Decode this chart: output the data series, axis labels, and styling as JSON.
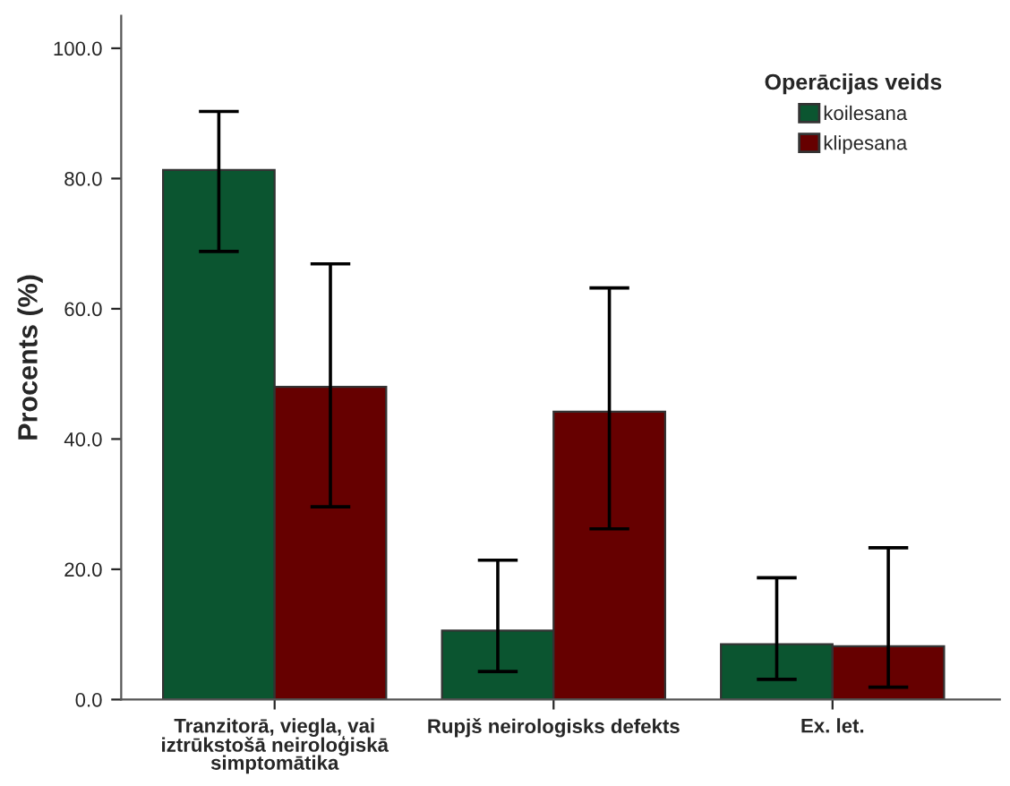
{
  "chart_data": {
    "type": "bar",
    "ylabel": "Procents (%)",
    "legend_title": "Operācijas veids",
    "legend": "top right",
    "grid": false,
    "categories": [
      "Tranzitorā, viegla, vai\niztrūkstošā neiroloģiskā\nsimptomātika",
      "Rupjš neirologisks defekts",
      "Ex. let."
    ],
    "series": [
      {
        "name": "koilesana",
        "color": "#0b5530",
        "values": [
          81.3,
          10.6,
          8.5
        ],
        "errors": [
          [
            68.8,
            90.3
          ],
          [
            4.3,
            21.4
          ],
          [
            3.1,
            18.7
          ]
        ]
      },
      {
        "name": "klipesana",
        "color": "#660000",
        "values": [
          48.0,
          44.2,
          8.2
        ],
        "errors": [
          [
            29.6,
            66.9
          ],
          [
            26.2,
            63.2
          ],
          [
            1.9,
            23.3
          ]
        ]
      }
    ],
    "ylim": [
      0,
      105
    ],
    "yticks": [
      {
        "value": 0,
        "label": "0.0"
      },
      {
        "value": 20,
        "label": "20.0"
      },
      {
        "value": 40,
        "label": "40.0"
      },
      {
        "value": 60,
        "label": "60.0"
      },
      {
        "value": 80,
        "label": "80.0"
      },
      {
        "value": 100,
        "label": "100.0"
      }
    ]
  }
}
